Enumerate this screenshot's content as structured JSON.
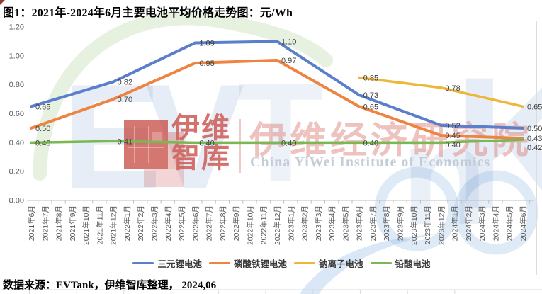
{
  "title": "图1：2021年-2024年6月主要电池平均价格走势图：元/Wh",
  "source_note": "数据来源：EVTank，伊维智库整理， 2024,06",
  "chart_data": {
    "type": "line",
    "title": "2021年-2024年6月主要电池平均价格走势图",
    "unit": "元/Wh",
    "ylim": [
      0,
      1.2
    ],
    "ytick_step": 0.2,
    "ytick_labels": [
      "0.00",
      "0.20",
      "0.40",
      "0.60",
      "0.80",
      "1.00",
      "1.20"
    ],
    "grid": false,
    "legend_position": "bottom",
    "x_labels": [
      "2021年6月",
      "2021年7月",
      "2021年8月",
      "2021年9月",
      "2021年10月",
      "2021年11月",
      "2021年12月",
      "2022年1月",
      "2022年2月",
      "2022年3月",
      "2022年4月",
      "2022年5月",
      "2022年6月",
      "2022年7月",
      "2022年8月",
      "2022年9月",
      "2022年10月",
      "2022年11月",
      "2022年12月",
      "2023年1月",
      "2023年2月",
      "2023年3月",
      "2023年4月",
      "2023年5月",
      "2023年6月",
      "2023年7月",
      "2023年8月",
      "2023年9月",
      "2023年10月",
      "2023年11月",
      "2023年12月",
      "2024年1月",
      "2024年2月",
      "2024年3月",
      "2024年4月",
      "2024年5月",
      "2024年6月"
    ],
    "data_point_months": [
      "2021年6月",
      "2021年12月",
      "2022年6月",
      "2022年12月",
      "2023年6月",
      "2023年12月",
      "2024年6月"
    ],
    "data_point_indices": [
      0,
      6,
      12,
      18,
      24,
      30,
      36
    ],
    "series": [
      {
        "name": "三元锂电池",
        "color": "#5B7FCB",
        "values": [
          0.65,
          0.82,
          1.09,
          1.1,
          0.73,
          0.52,
          0.5
        ]
      },
      {
        "name": "磷酸铁锂电池",
        "color": "#EE8442",
        "values": [
          0.5,
          0.7,
          0.95,
          0.97,
          0.65,
          0.45,
          0.43
        ]
      },
      {
        "name": "钠离子电池",
        "color": "#ECB73A",
        "values": [
          null,
          null,
          null,
          null,
          0.85,
          0.78,
          0.65
        ]
      },
      {
        "name": "铅酸电池",
        "color": "#79B852",
        "values": [
          0.4,
          0.41,
          0.4,
          0.4,
          0.4,
          0.4,
          0.42
        ]
      }
    ],
    "label_color": "#404040",
    "axis_text_color": "#595959",
    "axis_line_color": "#BFBFBF"
  },
  "watermark": {
    "letters": [
      "E",
      "V",
      "T",
      "n",
      "K"
    ],
    "logo_text": "伊维\n智库",
    "cn_name": "伊维经济研究院",
    "en_name": "China YiWei Institute of Economics"
  }
}
